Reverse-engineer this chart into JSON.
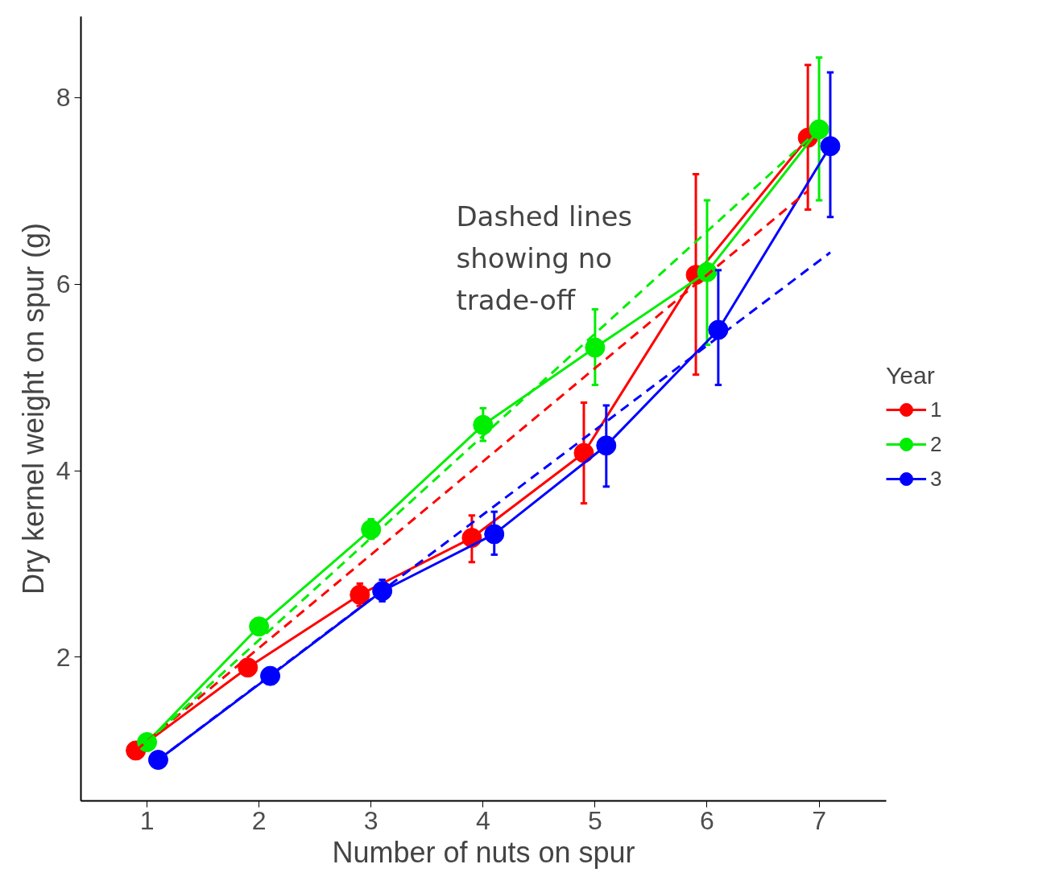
{
  "chart_data": {
    "type": "line",
    "xlabel": "Number of nuts on spur",
    "ylabel": "Dry kernel weight on spur (g)",
    "legend_title": "Year",
    "xlim": [
      0.41,
      7.6
    ],
    "xticks": [
      1,
      2,
      3,
      4,
      5,
      6,
      7
    ],
    "ylim": [
      0.46,
      8.87
    ],
    "yticks": [
      2,
      4,
      6,
      8
    ],
    "grid": false,
    "legend": "right",
    "marker": "circle",
    "annotations": [
      "Dashed lines\nshowing no\ntrade-off"
    ],
    "series": [
      {
        "name": "1",
        "color": "#ff0000",
        "x": [
          0.9,
          1.9,
          2.9,
          3.9,
          4.9,
          5.9,
          6.9
        ],
        "values": [
          1.0,
          1.89,
          2.67,
          3.28,
          4.19,
          6.1,
          7.57
        ],
        "errors": [
          null,
          null,
          [
            2.55,
            2.79
          ],
          [
            3.02,
            3.52
          ],
          [
            3.65,
            4.73
          ],
          [
            5.03,
            7.18
          ],
          [
            6.8,
            8.35
          ]
        ]
      },
      {
        "name": "2",
        "color": "#00ee00",
        "x": [
          1,
          2,
          3,
          4,
          5,
          6,
          7
        ],
        "values": [
          1.09,
          2.33,
          3.37,
          4.49,
          5.32,
          6.13,
          7.66
        ],
        "errors": [
          null,
          null,
          [
            3.27,
            3.48
          ],
          [
            4.32,
            4.67
          ],
          [
            4.92,
            5.73
          ],
          [
            5.35,
            6.9
          ],
          [
            6.9,
            8.43
          ]
        ]
      },
      {
        "name": "3",
        "color": "#0000ff",
        "x": [
          1.1,
          2.1,
          3.1,
          4.1,
          5.1,
          6.1,
          7.1
        ],
        "values": [
          0.9,
          1.8,
          2.71,
          3.32,
          4.27,
          5.51,
          7.48
        ],
        "errors": [
          null,
          null,
          [
            2.6,
            2.83
          ],
          [
            3.1,
            3.56
          ],
          [
            3.83,
            4.7
          ],
          [
            4.92,
            6.15
          ],
          [
            6.72,
            8.27
          ]
        ]
      },
      {
        "type": "line",
        "line_style": "dashed",
        "marker": "none",
        "color": "#ff0000",
        "x": [
          0.9,
          6.9
        ],
        "values": [
          1.0,
          7.0
        ]
      },
      {
        "type": "line",
        "line_style": "dashed",
        "marker": "none",
        "color": "#00ee00",
        "x": [
          1,
          7
        ],
        "values": [
          1.09,
          7.66
        ]
      },
      {
        "type": "line",
        "line_style": "dashed",
        "marker": "none",
        "color": "#0000ff",
        "x": [
          1.1,
          7.1
        ],
        "values": [
          0.9,
          6.34
        ]
      }
    ]
  }
}
